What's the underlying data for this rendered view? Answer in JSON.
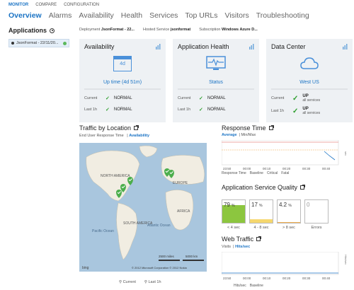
{
  "topbar": {
    "monitor": "MONITOR",
    "compare": "COMPARE",
    "configuration": "CONFIGURATION"
  },
  "nav": [
    "Overview",
    "Alarms",
    "Availability",
    "Health",
    "Services",
    "Top URLs",
    "Visitors",
    "Troubleshooting"
  ],
  "applications": {
    "title": "Applications",
    "item": "JsonFormat - 22/11/20..."
  },
  "meta": [
    {
      "label": "Deployment",
      "value": "JsonFormat - 22..."
    },
    {
      "label": "Hosted Service",
      "value": "jsonformat"
    },
    {
      "label": "Subscription",
      "value": "Windows Azure D..."
    }
  ],
  "panels": {
    "availability": {
      "title": "Availability",
      "icon_text": "4d",
      "sub": "Up time (4d 51m)",
      "rows": [
        {
          "label": "Current",
          "value": "NORMAL"
        },
        {
          "label": "Last 1h",
          "value": "NORMAL"
        }
      ]
    },
    "health": {
      "title": "Application Health",
      "sub": "Status",
      "rows": [
        {
          "label": "Current",
          "value": "NORMAL"
        },
        {
          "label": "Last 1h",
          "value": "NORMAL"
        }
      ]
    },
    "datacenter": {
      "title": "Data Center",
      "sub": "West US",
      "rows": [
        {
          "label": "Current",
          "value": "UP",
          "note": "all services"
        },
        {
          "label": "Last 1h",
          "value": "UP",
          "note": "all services"
        }
      ]
    }
  },
  "traffic": {
    "title": "Traffic by Location",
    "tab1": "End User Response Time",
    "tab2": "Availability",
    "map_labels": {
      "north_america": "NORTH AMERICA",
      "europe": "EUROPE",
      "africa": "AFRICA",
      "south_america": "SOUTH AMERICA",
      "pacific": "Pacific Ocean",
      "atlantic": "Atlantic Ocean",
      "scale1": "2500 miles",
      "scale2": "5000 km",
      "copyright": "© 2012 Microsoft Corporation   © 2012 Nokia",
      "bing": "bing"
    },
    "legend_current": "Current",
    "legend_last": "Last 1h"
  },
  "response_time": {
    "title": "Response Time",
    "tab1": "Average",
    "tab2": "Min/Max",
    "legend": [
      "Response Time",
      "Baseline",
      "Critical",
      "Fatal"
    ],
    "ticks": [
      "23:50",
      "00:00",
      "00:10",
      "00:20",
      "00:30",
      "00:40"
    ],
    "colors": {
      "line": "#1a73c4",
      "critical": "#f0ad4e",
      "fatal": "#d9534f"
    }
  },
  "quality": {
    "title": "Application Service Quality",
    "tiles": [
      {
        "value": "79",
        "unit": "%",
        "label": "< 4 sec",
        "level": 0.79,
        "color": "#8cc63f"
      },
      {
        "value": "17",
        "unit": "%",
        "label": "4 - 8 sec",
        "level": 0.17,
        "color": "#f5d76e"
      },
      {
        "value": "4.2",
        "unit": "%",
        "label": "> 8 sec",
        "level": 0.042,
        "color": "#f0ad4e"
      },
      {
        "value": "0",
        "unit": "",
        "label": "Errors",
        "level": 0,
        "color": "#d9534f"
      }
    ]
  },
  "web_traffic": {
    "title": "Web Traffic",
    "tab1": "Visits",
    "tab2": "Hits/sec",
    "ylabel": "Hits/sec",
    "ticks": [
      "23:50",
      "00:00",
      "00:10",
      "00:20",
      "00:30",
      "00:40"
    ],
    "legend": [
      "Hits/sec",
      "Baseline"
    ]
  }
}
